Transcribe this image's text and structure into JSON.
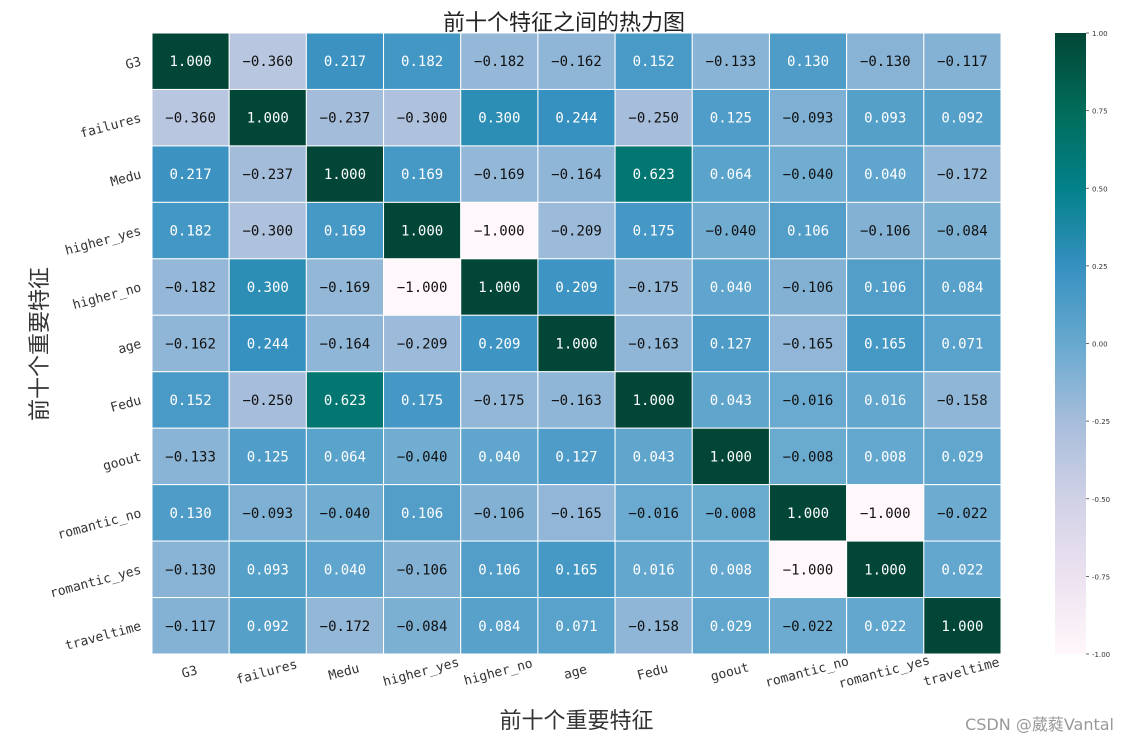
{
  "chart_data": {
    "type": "heatmap",
    "title": "前十个特征之间的热力图",
    "xlabel": "前十个重要特征",
    "ylabel": "前十个重要特征",
    "x_categories": [
      "G3",
      "failures",
      "Medu",
      "higher_yes",
      "higher_no",
      "age",
      "Fedu",
      "goout",
      "romantic_no",
      "romantic_yes",
      "traveltime"
    ],
    "y_categories": [
      "G3",
      "failures",
      "Medu",
      "higher_yes",
      "higher_no",
      "age",
      "Fedu",
      "goout",
      "romantic_no",
      "romantic_yes",
      "traveltime"
    ],
    "values": [
      [
        1.0,
        -0.36,
        0.217,
        0.182,
        -0.182,
        -0.162,
        0.152,
        -0.133,
        0.13,
        -0.13,
        -0.117
      ],
      [
        -0.36,
        1.0,
        -0.237,
        -0.3,
        0.3,
        0.244,
        -0.25,
        0.125,
        -0.093,
        0.093,
        0.092
      ],
      [
        0.217,
        -0.237,
        1.0,
        0.169,
        -0.169,
        -0.164,
        0.623,
        0.064,
        -0.04,
        0.04,
        -0.172
      ],
      [
        0.182,
        -0.3,
        0.169,
        1.0,
        -1.0,
        -0.209,
        0.175,
        -0.04,
        0.106,
        -0.106,
        -0.084
      ],
      [
        -0.182,
        0.3,
        -0.169,
        -1.0,
        1.0,
        0.209,
        -0.175,
        0.04,
        -0.106,
        0.106,
        0.084
      ],
      [
        -0.162,
        0.244,
        -0.164,
        -0.209,
        0.209,
        1.0,
        -0.163,
        0.127,
        -0.165,
        0.165,
        0.071
      ],
      [
        0.152,
        -0.25,
        0.623,
        0.175,
        -0.175,
        -0.163,
        1.0,
        0.043,
        -0.016,
        0.016,
        -0.158
      ],
      [
        -0.133,
        0.125,
        0.064,
        -0.04,
        0.04,
        0.127,
        0.043,
        1.0,
        -0.008,
        0.008,
        0.029
      ],
      [
        0.13,
        -0.093,
        -0.04,
        0.106,
        -0.106,
        -0.165,
        -0.016,
        -0.008,
        1.0,
        -1.0,
        -0.022
      ],
      [
        -0.13,
        0.093,
        0.04,
        -0.106,
        0.106,
        0.165,
        0.016,
        0.008,
        -1.0,
        1.0,
        0.022
      ],
      [
        -0.117,
        0.092,
        -0.172,
        -0.084,
        0.084,
        0.071,
        -0.158,
        0.029,
        -0.022,
        0.022,
        1.0
      ]
    ],
    "annotation_format": "0.000",
    "colormap": "PuBuGn",
    "colorbar": {
      "range": [
        -1.0,
        1.0
      ],
      "ticks": [
        -1.0,
        -0.75,
        -0.5,
        -0.25,
        0.0,
        0.25,
        0.5,
        0.75,
        1.0
      ],
      "tick_labels": [
        "-1.00",
        "-0.75",
        "-0.50",
        "-0.25",
        "0.00",
        "0.25",
        "0.50",
        "0.75",
        "1.00"
      ]
    },
    "grid": false
  },
  "watermark": "CSDN @葳蕤Vantal"
}
